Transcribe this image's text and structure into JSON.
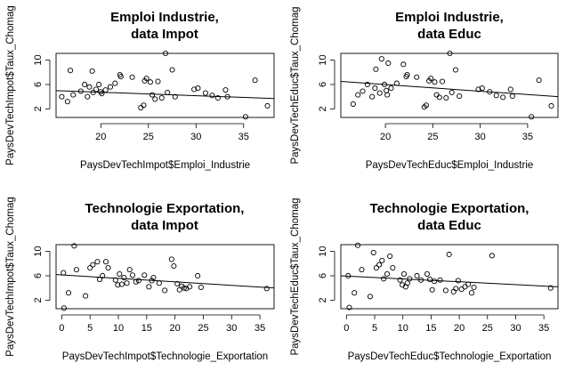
{
  "chart_data": [
    {
      "type": "scatter",
      "title": "Emploi Industrie,\ndata Impot",
      "xlabel": "PaysDevTechImpot$Emploi_Industrie",
      "ylabel": "PaysDevTechImpot$Taux_Chomag",
      "xlim": [
        15.3,
        38.2
      ],
      "ylim": [
        0.6,
        11.1
      ],
      "xticks": [
        20,
        25,
        30,
        35
      ],
      "yticks": [
        2,
        6,
        10
      ],
      "grid": false,
      "trend_line": {
        "x": [
          15.3,
          38.2
        ],
        "y": [
          5.0,
          3.7
        ]
      },
      "points": [
        [
          15.9,
          4.0
        ],
        [
          16.5,
          3.2
        ],
        [
          16.8,
          8.3
        ],
        [
          17.1,
          4.3
        ],
        [
          17.9,
          4.9
        ],
        [
          18.3,
          6.0
        ],
        [
          18.6,
          4.0
        ],
        [
          18.8,
          5.6
        ],
        [
          19.1,
          8.2
        ],
        [
          19.2,
          4.7
        ],
        [
          19.5,
          5.2
        ],
        [
          19.8,
          6.0
        ],
        [
          20.0,
          4.8
        ],
        [
          20.1,
          4.5
        ],
        [
          20.5,
          5.1
        ],
        [
          21.0,
          5.6
        ],
        [
          21.5,
          6.2
        ],
        [
          22.0,
          7.6
        ],
        [
          22.1,
          7.3
        ],
        [
          23.3,
          7.2
        ],
        [
          24.2,
          2.2
        ],
        [
          24.5,
          2.6
        ],
        [
          24.6,
          6.6
        ],
        [
          24.8,
          7.0
        ],
        [
          25.2,
          6.4
        ],
        [
          25.4,
          4.3
        ],
        [
          25.7,
          3.6
        ],
        [
          26.0,
          6.5
        ],
        [
          26.4,
          3.8
        ],
        [
          26.8,
          11.1
        ],
        [
          27.0,
          4.7
        ],
        [
          27.5,
          8.4
        ],
        [
          27.8,
          4.0
        ],
        [
          29.8,
          5.2
        ],
        [
          30.2,
          5.4
        ],
        [
          31.0,
          4.6
        ],
        [
          31.7,
          4.2
        ],
        [
          32.3,
          3.8
        ],
        [
          33.1,
          5.1
        ],
        [
          33.3,
          4.0
        ],
        [
          35.2,
          0.7
        ],
        [
          36.2,
          6.7
        ],
        [
          37.5,
          2.5
        ]
      ]
    },
    {
      "type": "scatter",
      "title": "Emploi Industrie,\ndata Educ",
      "xlabel": "PaysDevTechEduc$Emploi_Industrie",
      "ylabel": "PaysDevTechEduc$Taux_Chomag",
      "xlim": [
        15.3,
        38.2
      ],
      "ylim": [
        0.6,
        11.1
      ],
      "xticks": [
        20,
        25,
        30,
        35
      ],
      "yticks": [
        2,
        6,
        10
      ],
      "grid": false,
      "trend_line": {
        "x": [
          15.3,
          38.2
        ],
        "y": [
          6.5,
          4.0
        ]
      },
      "points": [
        [
          16.6,
          2.8
        ],
        [
          17.1,
          4.3
        ],
        [
          17.6,
          4.9
        ],
        [
          18.1,
          6.0
        ],
        [
          18.6,
          4.0
        ],
        [
          18.9,
          5.4
        ],
        [
          19.0,
          8.5
        ],
        [
          19.4,
          4.6
        ],
        [
          19.6,
          10.2
        ],
        [
          19.9,
          6.0
        ],
        [
          20.1,
          5.0
        ],
        [
          20.2,
          4.3
        ],
        [
          20.3,
          9.5
        ],
        [
          20.6,
          5.4
        ],
        [
          21.2,
          6.2
        ],
        [
          21.9,
          9.3
        ],
        [
          22.2,
          7.3
        ],
        [
          22.3,
          7.6
        ],
        [
          23.3,
          7.2
        ],
        [
          24.1,
          2.3
        ],
        [
          24.3,
          2.6
        ],
        [
          24.6,
          6.6
        ],
        [
          24.8,
          7.0
        ],
        [
          25.2,
          6.4
        ],
        [
          25.4,
          4.3
        ],
        [
          25.7,
          3.9
        ],
        [
          26.0,
          6.5
        ],
        [
          26.4,
          3.8
        ],
        [
          26.8,
          11.1
        ],
        [
          27.0,
          4.7
        ],
        [
          27.4,
          8.4
        ],
        [
          27.8,
          4.1
        ],
        [
          29.8,
          5.2
        ],
        [
          30.2,
          5.4
        ],
        [
          31.0,
          4.8
        ],
        [
          31.7,
          4.2
        ],
        [
          32.4,
          3.9
        ],
        [
          33.2,
          5.2
        ],
        [
          33.4,
          4.1
        ],
        [
          35.4,
          0.7
        ],
        [
          36.2,
          6.7
        ],
        [
          37.5,
          2.5
        ]
      ]
    },
    {
      "type": "scatter",
      "title": "Technologie Exportation,\ndata Impot",
      "xlabel": "PaysDevTechImpot$Technologie_Exportation",
      "ylabel": "PaysDevTechImpot$Taux_Chomag",
      "xlim": [
        -1.0,
        37.5
      ],
      "ylim": [
        0.6,
        11.1
      ],
      "xticks": [
        0,
        5,
        10,
        15,
        20,
        25,
        30,
        35
      ],
      "yticks": [
        2,
        6,
        10
      ],
      "grid": false,
      "trend_line": {
        "x": [
          -1.0,
          37.5
        ],
        "y": [
          6.2,
          4.0
        ]
      },
      "points": [
        [
          0.3,
          6.5
        ],
        [
          0.4,
          0.7
        ],
        [
          1.2,
          3.2
        ],
        [
          2.2,
          10.9
        ],
        [
          2.6,
          7.0
        ],
        [
          4.2,
          2.7
        ],
        [
          5.0,
          7.3
        ],
        [
          5.5,
          7.8
        ],
        [
          6.3,
          8.3
        ],
        [
          6.7,
          5.4
        ],
        [
          7.2,
          6.0
        ],
        [
          7.8,
          8.3
        ],
        [
          8.2,
          7.3
        ],
        [
          9.5,
          5.3
        ],
        [
          9.9,
          4.5
        ],
        [
          10.2,
          6.3
        ],
        [
          10.6,
          4.6
        ],
        [
          11.0,
          5.7
        ],
        [
          11.5,
          4.8
        ],
        [
          12.0,
          7.0
        ],
        [
          12.5,
          6.1
        ],
        [
          13.1,
          5.0
        ],
        [
          13.6,
          5.2
        ],
        [
          14.6,
          6.1
        ],
        [
          15.4,
          4.2
        ],
        [
          15.9,
          5.2
        ],
        [
          16.2,
          5.7
        ],
        [
          17.2,
          4.8
        ],
        [
          18.2,
          3.6
        ],
        [
          19.4,
          8.7
        ],
        [
          19.8,
          7.6
        ],
        [
          20.4,
          4.7
        ],
        [
          20.8,
          3.7
        ],
        [
          21.2,
          4.3
        ],
        [
          21.6,
          4.0
        ],
        [
          22.0,
          3.9
        ],
        [
          22.6,
          4.2
        ],
        [
          24.0,
          6.0
        ],
        [
          24.6,
          4.1
        ],
        [
          36.2,
          3.9
        ]
      ]
    },
    {
      "type": "scatter",
      "title": "Technologie Exportation,\ndata Educ",
      "xlabel": "PaysDevTechEduc$Technologie_Exportation",
      "ylabel": "PaysDevTechEduc$Taux_Chomag",
      "xlim": [
        -1.0,
        37.5
      ],
      "ylim": [
        0.6,
        11.1
      ],
      "xticks": [
        0,
        5,
        10,
        15,
        20,
        25,
        30,
        35
      ],
      "yticks": [
        2,
        6,
        10
      ],
      "grid": false,
      "trend_line": {
        "x": [
          -1.0,
          37.5
        ],
        "y": [
          6.0,
          4.2
        ]
      },
      "points": [
        [
          0.3,
          6.0
        ],
        [
          0.5,
          0.8
        ],
        [
          1.4,
          3.2
        ],
        [
          2.0,
          11.0
        ],
        [
          2.7,
          7.0
        ],
        [
          4.2,
          2.6
        ],
        [
          4.8,
          9.8
        ],
        [
          5.3,
          7.3
        ],
        [
          5.8,
          7.8
        ],
        [
          6.3,
          8.5
        ],
        [
          6.6,
          5.5
        ],
        [
          7.2,
          6.3
        ],
        [
          7.7,
          9.2
        ],
        [
          8.2,
          7.3
        ],
        [
          9.5,
          5.3
        ],
        [
          9.9,
          4.5
        ],
        [
          10.2,
          6.3
        ],
        [
          10.5,
          4.2
        ],
        [
          10.8,
          4.8
        ],
        [
          11.2,
          5.5
        ],
        [
          12.5,
          6.0
        ],
        [
          13.2,
          5.3
        ],
        [
          14.3,
          6.3
        ],
        [
          14.8,
          5.4
        ],
        [
          15.2,
          3.7
        ],
        [
          15.6,
          5.1
        ],
        [
          16.6,
          5.3
        ],
        [
          17.6,
          3.6
        ],
        [
          18.2,
          9.5
        ],
        [
          19.0,
          3.4
        ],
        [
          19.4,
          3.9
        ],
        [
          19.8,
          5.2
        ],
        [
          20.4,
          3.8
        ],
        [
          21.0,
          4.2
        ],
        [
          21.6,
          4.6
        ],
        [
          22.2,
          3.2
        ],
        [
          22.6,
          4.1
        ],
        [
          25.8,
          9.3
        ],
        [
          36.2,
          4.0
        ]
      ]
    }
  ]
}
